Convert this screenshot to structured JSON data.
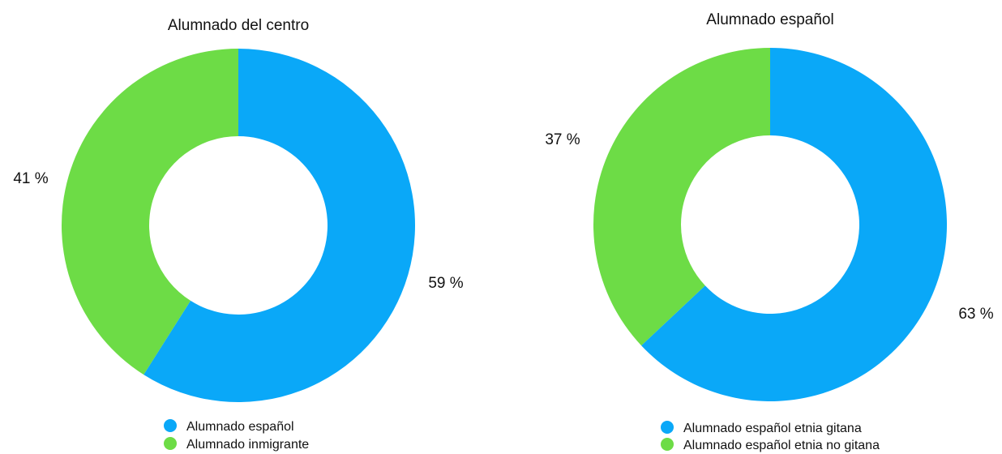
{
  "chart_data": [
    {
      "type": "pie",
      "title": "Alumnado del centro",
      "categories": [
        "Alumnado español",
        "Alumnado inmigrante"
      ],
      "values": [
        59,
        41
      ],
      "labels": [
        "59 %",
        "41 %"
      ],
      "colors": [
        "#0aa8f8",
        "#6ddc46"
      ],
      "legend_position": "bottom"
    },
    {
      "type": "pie",
      "title": "Alumnado español",
      "categories": [
        "Alumnado español etnia gitana",
        "Alumnado español etnia no gitana"
      ],
      "values": [
        63,
        37
      ],
      "labels": [
        "63 %",
        "37 %"
      ],
      "colors": [
        "#0aa8f8",
        "#6ddc46"
      ],
      "legend_position": "bottom"
    }
  ]
}
